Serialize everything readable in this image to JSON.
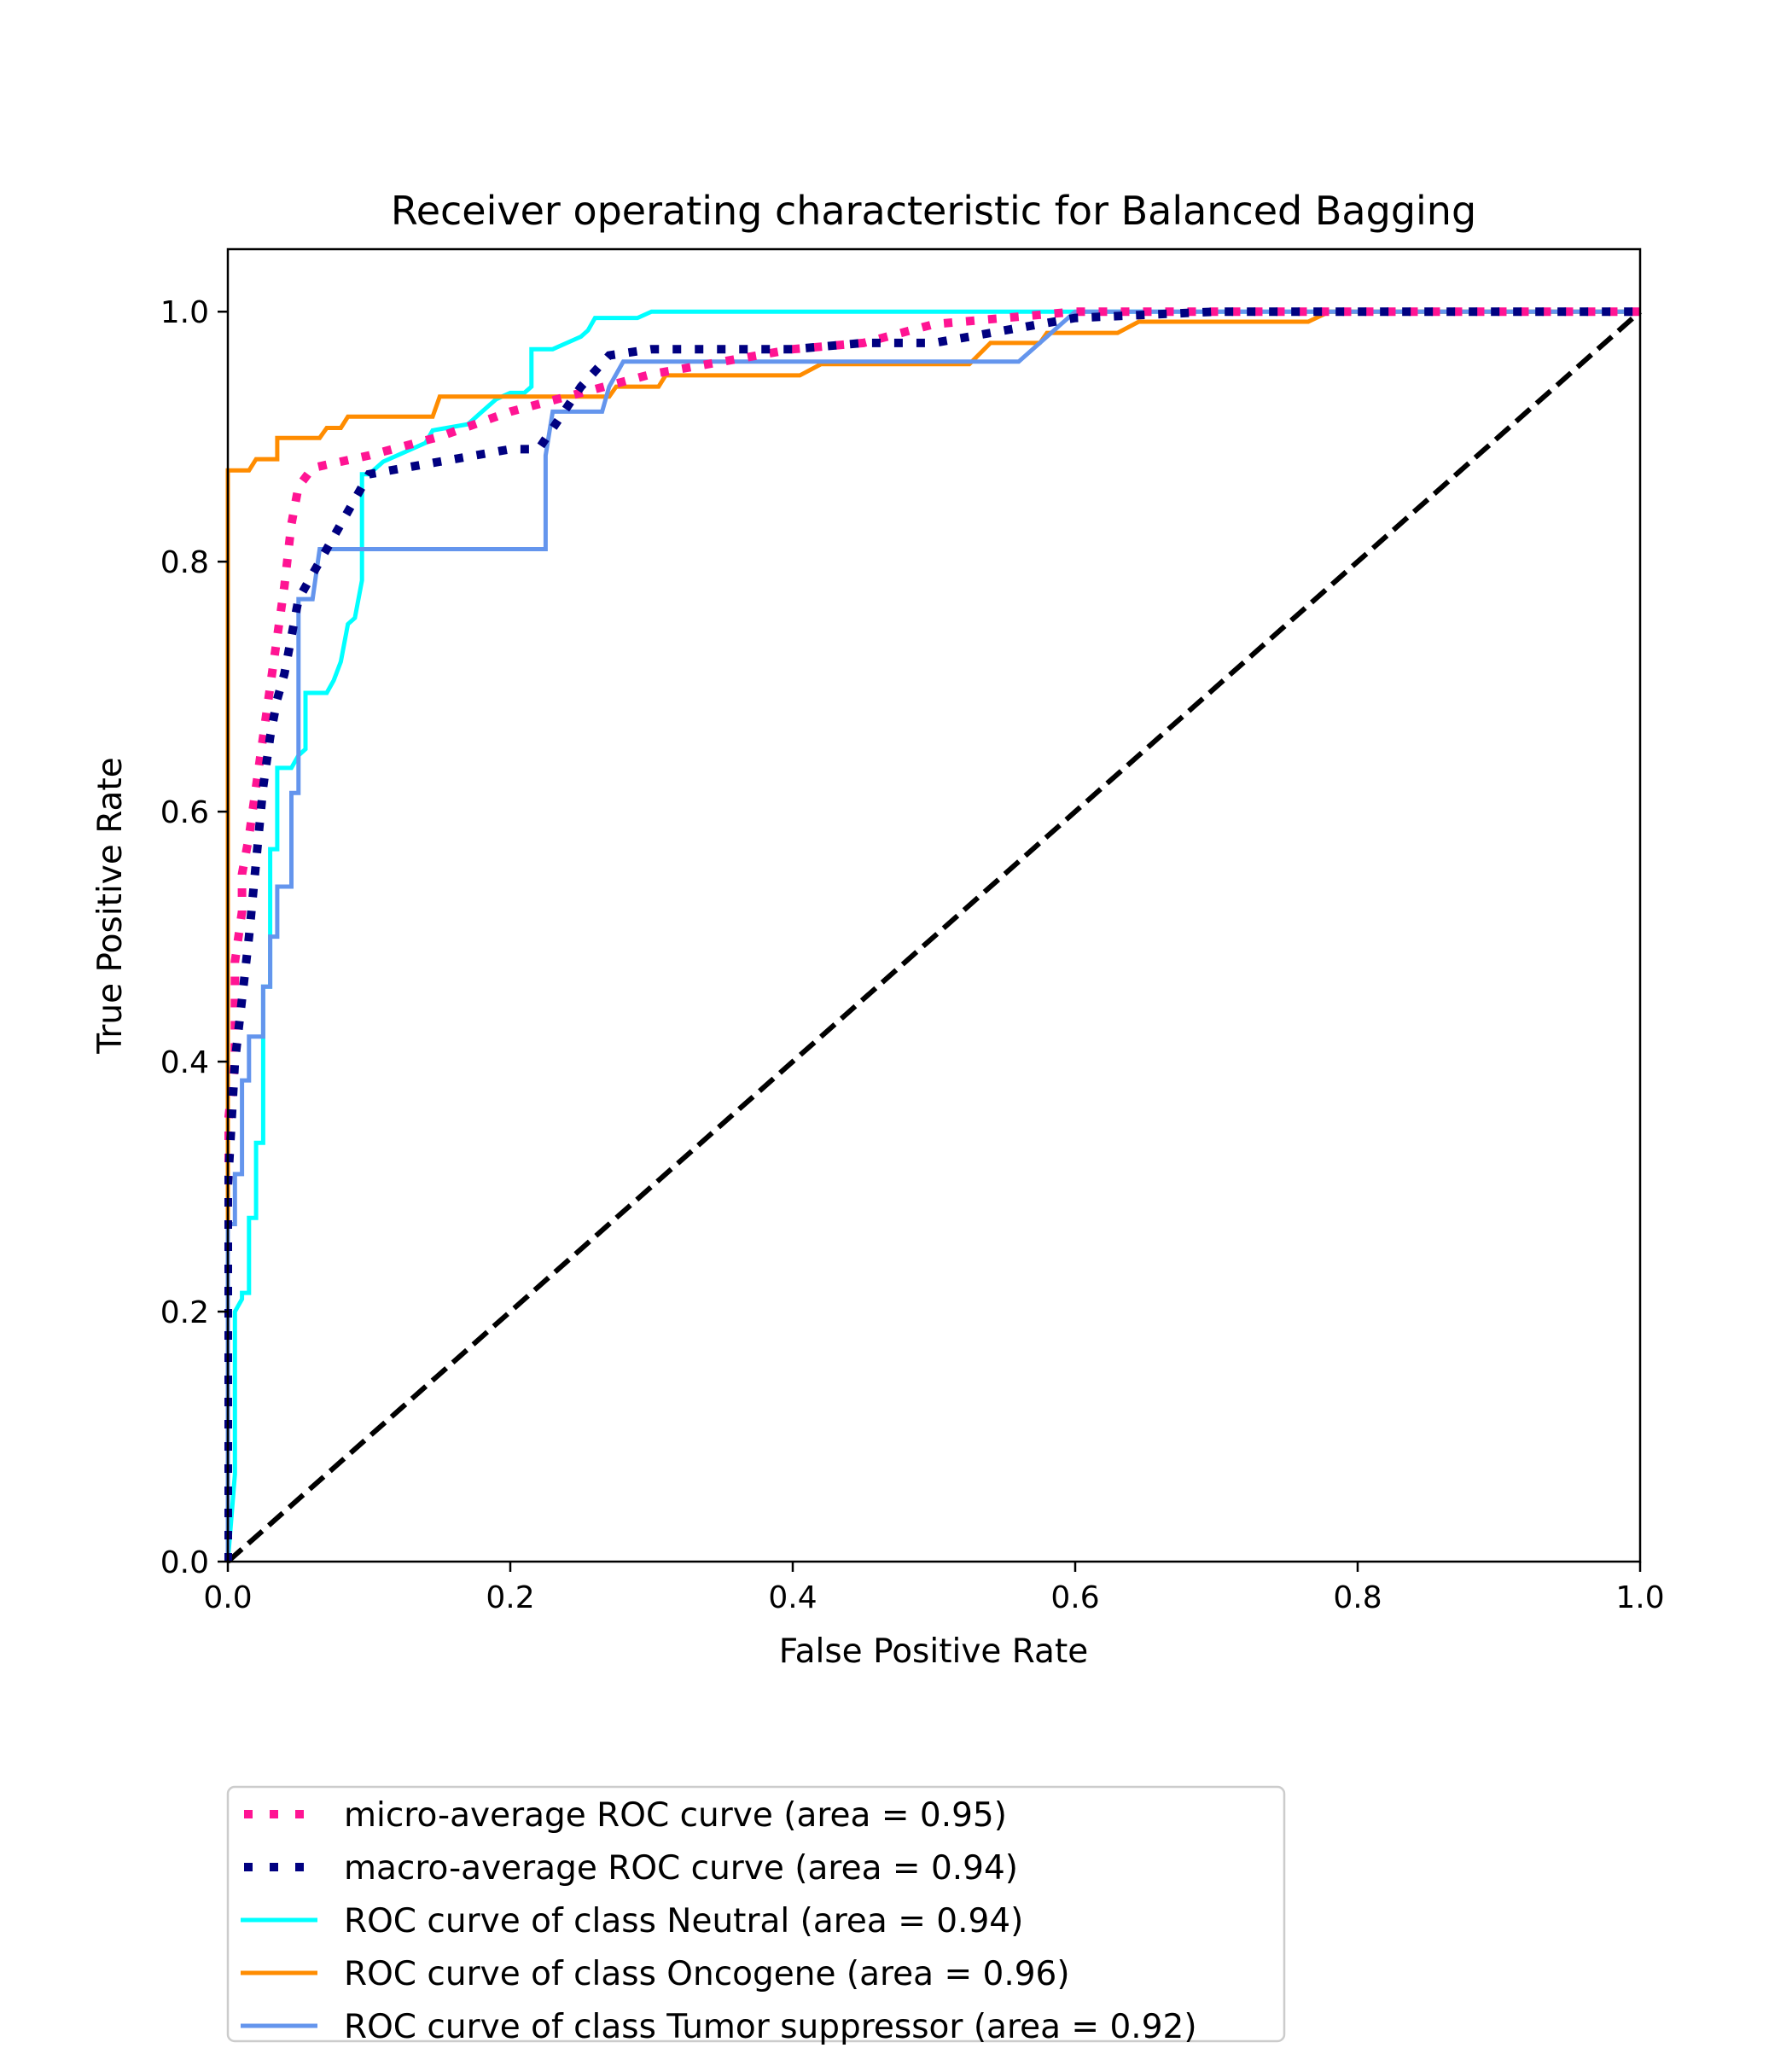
{
  "chart_data": {
    "type": "line",
    "title": "Receiver operating characteristic for Balanced Bagging",
    "xlabel": "False Positive Rate",
    "ylabel": "True Positive Rate",
    "xlim": [
      0.0,
      1.0
    ],
    "ylim": [
      0.0,
      1.05
    ],
    "xticks": [
      "0.0",
      "0.2",
      "0.4",
      "0.6",
      "0.8",
      "1.0"
    ],
    "yticks": [
      "0.0",
      "0.2",
      "0.4",
      "0.6",
      "0.8",
      "1.0"
    ],
    "grid": false,
    "legend_position": "bottom-left, below axes",
    "series": [
      {
        "name": "micro-average ROC curve (area = 0.95)",
        "color": "#ff1493",
        "style": "dotted",
        "x": [
          0.0,
          0.0,
          0.005,
          0.005,
          0.01,
          0.01,
          0.015,
          0.02,
          0.025,
          0.03,
          0.035,
          0.04,
          0.045,
          0.05,
          0.06,
          0.08,
          0.1,
          0.15,
          0.2,
          0.25,
          0.3,
          0.35,
          0.4,
          0.45,
          0.5,
          0.55,
          0.6,
          0.7,
          0.8,
          1.0
        ],
        "y": [
          0.0,
          0.35,
          0.4,
          0.48,
          0.52,
          0.55,
          0.58,
          0.62,
          0.66,
          0.7,
          0.74,
          0.78,
          0.83,
          0.86,
          0.875,
          0.88,
          0.885,
          0.9,
          0.92,
          0.935,
          0.95,
          0.96,
          0.97,
          0.975,
          0.99,
          0.995,
          1.0,
          1.0,
          1.0,
          1.0
        ]
      },
      {
        "name": "macro-average ROC curve (area = 0.94)",
        "color": "#000080",
        "style": "dotted",
        "x": [
          0.0,
          0.0,
          0.005,
          0.01,
          0.015,
          0.02,
          0.025,
          0.03,
          0.035,
          0.04,
          0.045,
          0.05,
          0.06,
          0.08,
          0.1,
          0.15,
          0.2,
          0.22,
          0.25,
          0.27,
          0.3,
          0.35,
          0.4,
          0.45,
          0.5,
          0.55,
          0.6,
          0.7,
          0.8,
          1.0
        ],
        "y": [
          0.0,
          0.3,
          0.4,
          0.45,
          0.5,
          0.56,
          0.62,
          0.66,
          0.69,
          0.71,
          0.74,
          0.77,
          0.79,
          0.83,
          0.87,
          0.88,
          0.89,
          0.89,
          0.94,
          0.965,
          0.97,
          0.97,
          0.97,
          0.975,
          0.975,
          0.985,
          0.995,
          1.0,
          1.0,
          1.0
        ]
      },
      {
        "name": "ROC curve of class Neutral (area = 0.94)",
        "color": "#00ffff",
        "style": "solid",
        "x": [
          0.0,
          0.005,
          0.005,
          0.01,
          0.01,
          0.015,
          0.015,
          0.02,
          0.02,
          0.025,
          0.025,
          0.03,
          0.03,
          0.035,
          0.035,
          0.045,
          0.05,
          0.055,
          0.055,
          0.07,
          0.075,
          0.08,
          0.085,
          0.09,
          0.095,
          0.095,
          0.1,
          0.11,
          0.12,
          0.13,
          0.14,
          0.145,
          0.17,
          0.18,
          0.19,
          0.2,
          0.21,
          0.215,
          0.215,
          0.23,
          0.24,
          0.25,
          0.255,
          0.26,
          0.29,
          0.3,
          1.0
        ],
        "y": [
          0.0,
          0.07,
          0.2,
          0.21,
          0.215,
          0.215,
          0.275,
          0.275,
          0.335,
          0.335,
          0.46,
          0.46,
          0.57,
          0.57,
          0.635,
          0.635,
          0.645,
          0.65,
          0.695,
          0.695,
          0.705,
          0.72,
          0.75,
          0.755,
          0.785,
          0.87,
          0.87,
          0.88,
          0.885,
          0.89,
          0.895,
          0.905,
          0.91,
          0.92,
          0.93,
          0.935,
          0.935,
          0.94,
          0.97,
          0.97,
          0.975,
          0.98,
          0.985,
          0.995,
          0.995,
          1.0,
          1.0
        ]
      },
      {
        "name": "ROC curve of class Oncogene (area = 0.96)",
        "color": "#ff8c00",
        "style": "solid",
        "x": [
          0.0,
          0.0,
          0.015,
          0.02,
          0.035,
          0.035,
          0.065,
          0.07,
          0.08,
          0.085,
          0.145,
          0.15,
          0.27,
          0.275,
          0.305,
          0.31,
          0.405,
          0.42,
          0.525,
          0.54,
          0.575,
          0.58,
          0.63,
          0.645,
          0.765,
          0.78,
          1.0
        ],
        "y": [
          0.0,
          0.873,
          0.873,
          0.882,
          0.882,
          0.899,
          0.899,
          0.907,
          0.907,
          0.916,
          0.916,
          0.932,
          0.932,
          0.94,
          0.94,
          0.949,
          0.949,
          0.958,
          0.958,
          0.975,
          0.975,
          0.983,
          0.983,
          0.992,
          0.992,
          1.0,
          1.0
        ]
      },
      {
        "name": "ROC curve of class Tumor suppressor (area = 0.92)",
        "color": "#6495ed",
        "style": "solid",
        "x": [
          0.0,
          0.0,
          0.005,
          0.005,
          0.01,
          0.01,
          0.015,
          0.015,
          0.02,
          0.025,
          0.025,
          0.03,
          0.03,
          0.035,
          0.035,
          0.04,
          0.045,
          0.045,
          0.05,
          0.05,
          0.06,
          0.065,
          0.22,
          0.225,
          0.225,
          0.23,
          0.265,
          0.27,
          0.28,
          0.56,
          0.6,
          1.0
        ],
        "y": [
          0.0,
          0.27,
          0.27,
          0.31,
          0.31,
          0.385,
          0.385,
          0.42,
          0.42,
          0.42,
          0.46,
          0.46,
          0.5,
          0.5,
          0.54,
          0.54,
          0.54,
          0.615,
          0.615,
          0.77,
          0.77,
          0.81,
          0.81,
          0.81,
          0.885,
          0.92,
          0.92,
          0.94,
          0.96,
          0.96,
          1.0,
          1.0
        ]
      },
      {
        "name": "",
        "color": "#000000",
        "style": "dashed",
        "x": [
          0.0,
          1.0
        ],
        "y": [
          0.0,
          1.0
        ]
      }
    ]
  }
}
